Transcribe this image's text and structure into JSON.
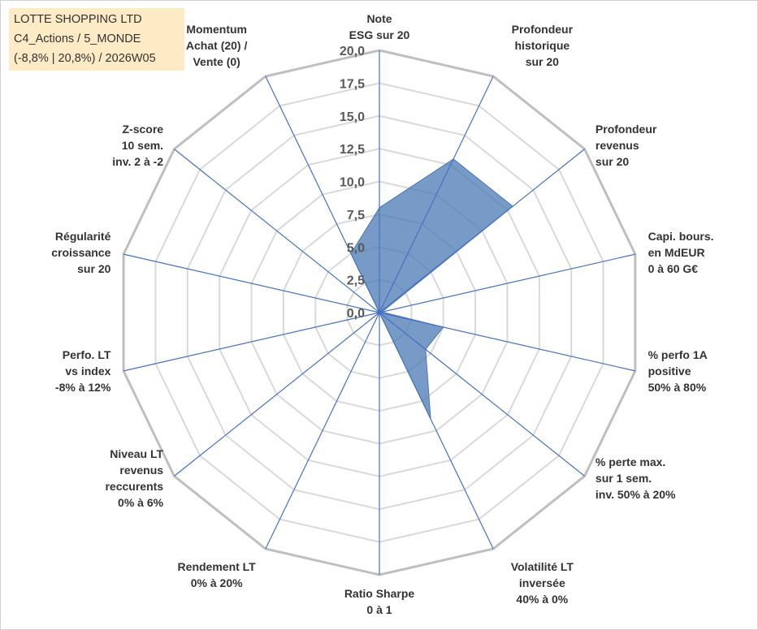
{
  "title_box": {
    "line1": "LOTTE SHOPPING LTD",
    "line2": "C4_Actions / 5_MONDE",
    "line3": "(-8,8% | 20,8%) / 2026W05"
  },
  "colors": {
    "fill": "#4a78b3",
    "spoke": "#4472c4",
    "outer_ring": "#bfbfbf",
    "inner_ring": "#d9d9d9"
  },
  "chart_data": {
    "type": "radar",
    "title": "LOTTE SHOPPING LTD",
    "rmin": 0,
    "rmax": 20,
    "ticks": [
      "0,0",
      "2,5",
      "5,0",
      "7,5",
      "10,0",
      "12,5",
      "15,0",
      "17,5",
      "20,0"
    ],
    "tick_values": [
      0,
      2.5,
      5,
      7.5,
      10,
      12.5,
      15,
      17.5,
      20
    ],
    "axes": [
      {
        "label": [
          "Note",
          "ESG sur 20"
        ],
        "value": 8.0
      },
      {
        "label": [
          "Profondeur",
          "historique",
          "sur 20"
        ],
        "value": 13.0
      },
      {
        "label": [
          "Profondeur",
          "revenus",
          "sur 20"
        ],
        "value": 13.0
      },
      {
        "label": [
          "Capi. bours.",
          "en MdEUR",
          "0 à 60 G€"
        ],
        "value": 0.2
      },
      {
        "label": [
          "% perfo 1A",
          "positive",
          "50% à 80%"
        ],
        "value": 5.0
      },
      {
        "label": [
          "% perte max.",
          "sur 1 sem.",
          "inv. 50% à 20%"
        ],
        "value": 4.5
      },
      {
        "label": [
          "Volatilité LT",
          "inversée",
          "40% à 0%"
        ],
        "value": 9.0
      },
      {
        "label": [
          "Ratio Sharpe",
          "0 à 1"
        ],
        "value": 0.0
      },
      {
        "label": [
          "Rendement LT",
          "0% à 20%"
        ],
        "value": 0.0
      },
      {
        "label": [
          "Niveau LT",
          "revenus",
          "reccurents",
          "0% à 6%"
        ],
        "value": 0.0
      },
      {
        "label": [
          "Perfo. LT",
          "vs index",
          "-8% à 12%"
        ],
        "value": 0.0
      },
      {
        "label": [
          "Régularité",
          "croissance",
          "sur 20"
        ],
        "value": 0.0
      },
      {
        "label": [
          "Z-score",
          "10 sem.",
          "inv. 2 à -2"
        ],
        "value": 0.0
      },
      {
        "label": [
          "Momentum",
          "Achat (20) /",
          "Vente (0)"
        ],
        "value": 5.0
      }
    ]
  }
}
